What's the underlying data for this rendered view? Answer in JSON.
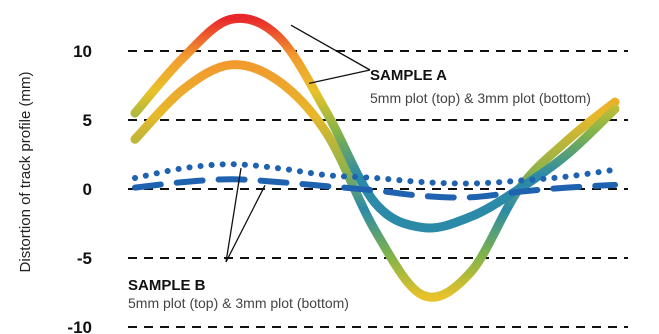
{
  "chart_data": {
    "type": "line",
    "title": "",
    "xlabel": "",
    "ylabel": "Distortion of track profile (mm)",
    "ylim": [
      -10,
      12
    ],
    "yticks": [
      -10,
      -5,
      0,
      5,
      10
    ],
    "grid": true,
    "x": [
      0,
      0.1,
      0.2,
      0.3,
      0.4,
      0.5,
      0.6,
      0.7,
      0.8,
      0.9,
      1.0
    ],
    "series": [
      {
        "values": [
          5.5,
          9.5,
          12.3,
          11.0,
          5.5,
          -1.0,
          -2.8,
          -2.0,
          0.0,
          2.5,
          5.8
        ]
      },
      {
        "values": [
          3.6,
          7.2,
          9.0,
          7.8,
          4.0,
          -3.0,
          -7.7,
          -6.0,
          0.0,
          3.5,
          6.3
        ]
      },
      {
        "values": [
          0.8,
          1.5,
          1.8,
          1.5,
          1.0,
          0.8,
          0.5,
          0.4,
          0.6,
          0.9,
          1.4
        ]
      },
      {
        "values": [
          0.1,
          0.5,
          0.7,
          0.5,
          0.2,
          -0.1,
          -0.5,
          -0.6,
          -0.2,
          0.1,
          0.3
        ]
      }
    ],
    "annotations": [
      {
        "title": "SAMPLE A",
        "subtitle": "5mm plot (top) & 3mm plot (bottom)"
      },
      {
        "title": "SAMPLE B",
        "subtitle": "5mm plot (top) & 3mm plot (bottom)"
      }
    ],
    "colors": {
      "gradient_red": "#e8262b",
      "gradient_orange": "#f29a2e",
      "gradient_yellow": "#e8c22a",
      "gradient_green": "#7fb34a",
      "gradient_teal": "#2b8aa8",
      "sample_b": "#1f63b0",
      "grid": "#111111"
    }
  }
}
